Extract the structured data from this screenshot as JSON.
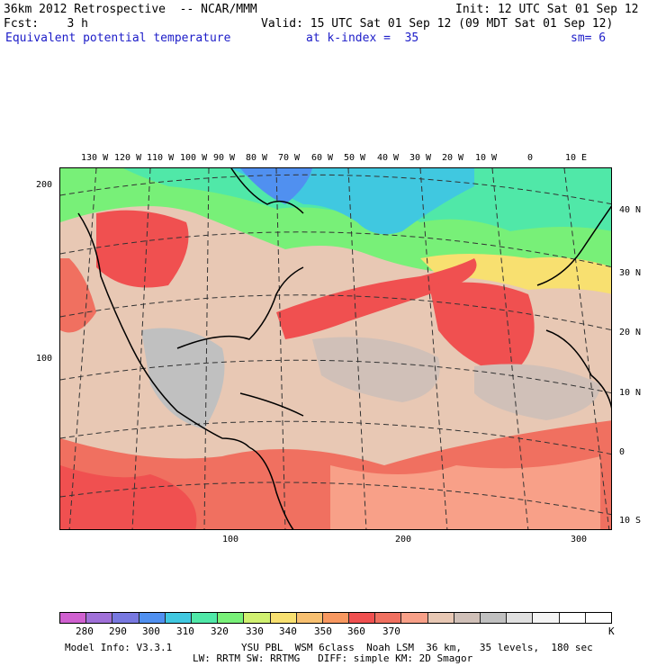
{
  "header": {
    "line1_left": "36km 2012 Retrospective  -- NCAR/MMM",
    "line1_right": "Init: 12 UTC Sat 01 Sep 12",
    "line2_left": "Fcst:    3 h",
    "line2_right": "Valid: 15 UTC Sat 01 Sep 12 (09 MDT Sat 01 Sep 12)",
    "line3_field": "Equivalent potential temperature",
    "line3_level": "at k-index =  35",
    "line3_smooth": "sm= 6"
  },
  "map": {
    "top_lon_labels": [
      "130 W",
      "120 W",
      "110 W",
      "100 W",
      "90 W",
      "80 W",
      "70 W",
      "60 W",
      "50 W",
      "40 W",
      "30 W",
      "20 W",
      "10 W",
      "0",
      "10 E"
    ],
    "right_lat_labels": [
      "40 N",
      "30 N",
      "20 N",
      "10 N",
      "0",
      "10 S"
    ],
    "left_grid_labels": [
      "200",
      "100"
    ],
    "bottom_grid_labels": [
      "100",
      "200",
      "300"
    ]
  },
  "legend": {
    "colors": [
      "#d060d0",
      "#a070d8",
      "#7878e0",
      "#5090f0",
      "#40c8e0",
      "#50e8a8",
      "#78f078",
      "#d0f070",
      "#f8e070",
      "#f8c070",
      "#f89860",
      "#f05050",
      "#f07060",
      "#f8a088",
      "#e8c8b4",
      "#d0c0b8",
      "#c0c0c0",
      "#e0e0e0",
      "#f4f4f4",
      "#ffffff",
      "#ffffff"
    ],
    "tick_labels": [
      "280",
      "290",
      "300",
      "310",
      "320",
      "330",
      "340",
      "350",
      "360",
      "370",
      "K"
    ]
  },
  "footer": {
    "line1_left": "Model Info: V3.3.1",
    "line1_right": "YSU PBL  WSM 6class  Noah LSM  36 km,   35 levels,  180 sec",
    "line2": "LW: RRTM SW: RRTMG   DIFF: simple KM: 2D Smagor"
  }
}
